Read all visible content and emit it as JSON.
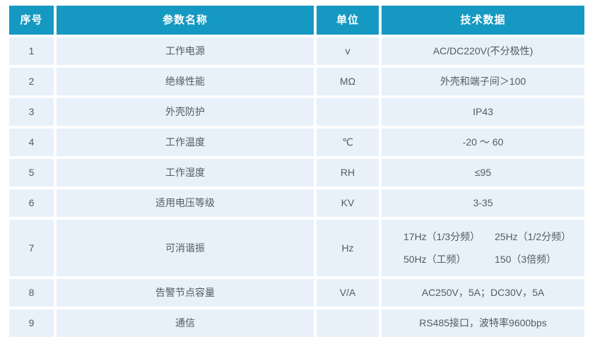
{
  "table": {
    "headers": [
      "序号",
      "参数名称",
      "单位",
      "技术数据"
    ],
    "rows": [
      {
        "no": "1",
        "name": "工作电源",
        "unit": "v",
        "data": "AC/DC220V(不分极性)"
      },
      {
        "no": "2",
        "name": "绝缘性能",
        "unit": "MΩ",
        "data": "外壳和端子间＞100"
      },
      {
        "no": "3",
        "name": "外壳防护",
        "unit": "",
        "data": "IP43"
      },
      {
        "no": "4",
        "name": "工作温度",
        "unit": "℃",
        "data": "-20 ～ 60"
      },
      {
        "no": "5",
        "name": "工作湿度",
        "unit": "RH",
        "data": "≤95"
      },
      {
        "no": "6",
        "name": "适用电压等级",
        "unit": "KV",
        "data": "3-35"
      },
      {
        "no": "7",
        "name": "可消谐振",
        "unit": "Hz",
        "data": [
          "17Hz（1/3分频）",
          "25Hz（1/2分频）",
          "50Hz（工频）",
          "150（3倍频）"
        ]
      },
      {
        "no": "8",
        "name": "告警节点容量",
        "unit": "V/A",
        "data": "AC250V，5A；DC30V，5A"
      },
      {
        "no": "9",
        "name": "通信",
        "unit": "",
        "data": "RS485接口，波特率9600bps"
      }
    ]
  },
  "colors": {
    "header_bg": "#1599c2",
    "row_bg": "#e8f1fa",
    "header_text": "#ffffff",
    "body_text": "#555a61"
  }
}
